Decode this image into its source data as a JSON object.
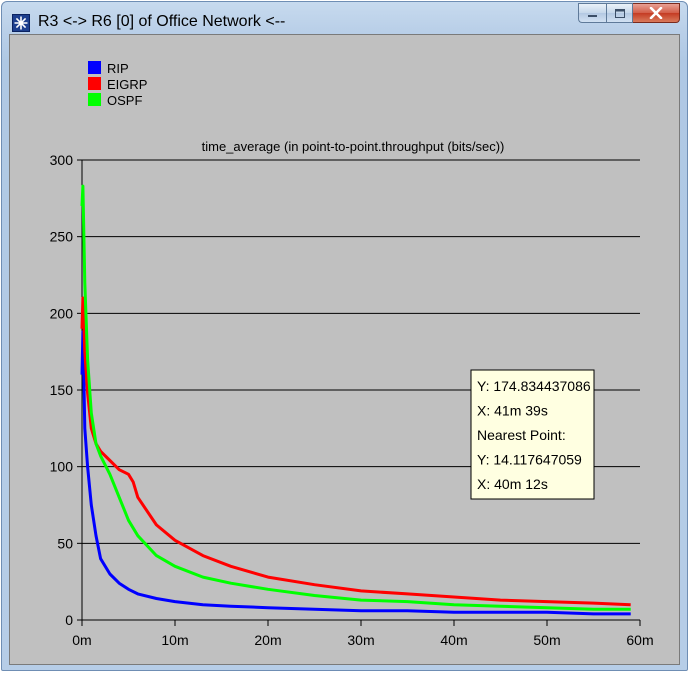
{
  "window": {
    "title": "R3 <-> R6 [0] of Office Network <--",
    "icon": "star-app-icon",
    "buttons": {
      "minimize": "minimize-icon",
      "maximize": "maximize-icon",
      "close": "close-icon"
    }
  },
  "chart_data": {
    "type": "line",
    "title": "time_average (in point-to-point.throughput (bits/sec))",
    "xlabel": "",
    "ylabel": "",
    "xlim": [
      0,
      60
    ],
    "ylim": [
      0,
      300
    ],
    "x_ticks": [
      0,
      10,
      20,
      30,
      40,
      50,
      60
    ],
    "x_tick_labels": [
      "0m",
      "10m",
      "20m",
      "30m",
      "40m",
      "50m",
      "60m"
    ],
    "y_ticks": [
      0,
      50,
      100,
      150,
      200,
      250,
      300
    ],
    "y_tick_labels": [
      "0",
      "50",
      "100",
      "150",
      "200",
      "250",
      "300"
    ],
    "grid": "horizontal",
    "legend_position": "top-left",
    "series": [
      {
        "name": "RIP",
        "color": "#0000ff",
        "x": [
          0,
          0.1,
          0.3,
          0.6,
          1,
          1.5,
          2,
          3,
          4,
          5,
          6,
          8,
          10,
          13,
          16,
          20,
          25,
          30,
          35,
          40,
          45,
          50,
          55,
          59
        ],
        "y": [
          160,
          188,
          125,
          100,
          75,
          55,
          40,
          30,
          24,
          20,
          17,
          14,
          12,
          10,
          9,
          8,
          7,
          6,
          6,
          5,
          5,
          5,
          4,
          4
        ]
      },
      {
        "name": "EIGRP",
        "color": "#ff0000",
        "x": [
          0,
          0.1,
          0.3,
          0.6,
          1,
          1.5,
          2,
          3,
          4,
          5,
          5.5,
          6,
          8,
          10,
          13,
          16,
          20,
          25,
          30,
          35,
          40,
          45,
          50,
          55,
          59
        ],
        "y": [
          190,
          210,
          175,
          148,
          125,
          115,
          110,
          104,
          98,
          95,
          90,
          80,
          62,
          52,
          42,
          35,
          28,
          23,
          19,
          17,
          15,
          13,
          12,
          11,
          10
        ]
      },
      {
        "name": "OSPF",
        "color": "#00ff00",
        "x": [
          0,
          0.1,
          0.3,
          0.6,
          1,
          1.5,
          2,
          3,
          4,
          5,
          6,
          8,
          10,
          13,
          16,
          20,
          25,
          30,
          35,
          40,
          45,
          50,
          55,
          59
        ],
        "y": [
          270,
          283,
          220,
          170,
          135,
          115,
          107,
          95,
          80,
          65,
          55,
          42,
          35,
          28,
          24,
          20,
          16,
          13,
          12,
          10,
          9,
          8,
          7,
          7
        ]
      }
    ],
    "tooltip": {
      "lines": [
        "Y: 174.834437086",
        "X: 41m 39s",
        "Nearest Point:",
        "Y: 14.117647059",
        "X: 40m 12s"
      ],
      "background": "#ffffe1"
    }
  }
}
